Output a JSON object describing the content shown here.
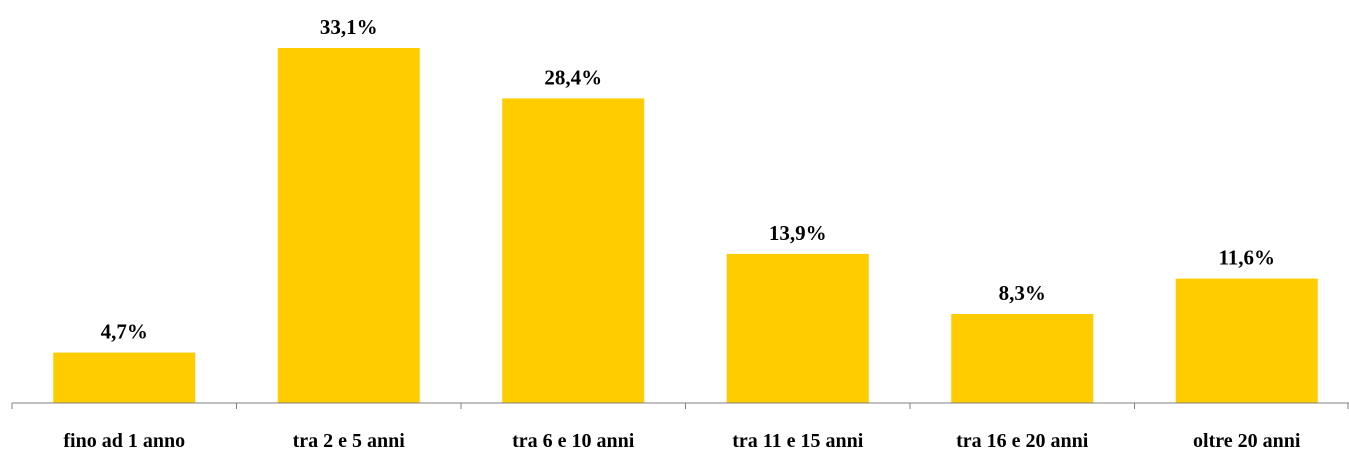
{
  "chart_data": {
    "type": "bar",
    "categories": [
      "fino ad 1 anno",
      "tra 2 e 5 anni",
      "tra 6 e 10 anni",
      "tra 11 e 15 anni",
      "tra 16 e 20 anni",
      "oltre 20 anni"
    ],
    "values": [
      4.7,
      33.1,
      28.4,
      13.9,
      8.3,
      11.6
    ],
    "data_labels": [
      "4,7%",
      "33,1%",
      "28,4%",
      "13,9%",
      "8,3%",
      "11,6%"
    ],
    "title": "",
    "xlabel": "",
    "ylabel": "",
    "ylim": [
      0,
      35
    ],
    "grid": false,
    "legend": "none",
    "bar_color": "#FFCC00"
  }
}
